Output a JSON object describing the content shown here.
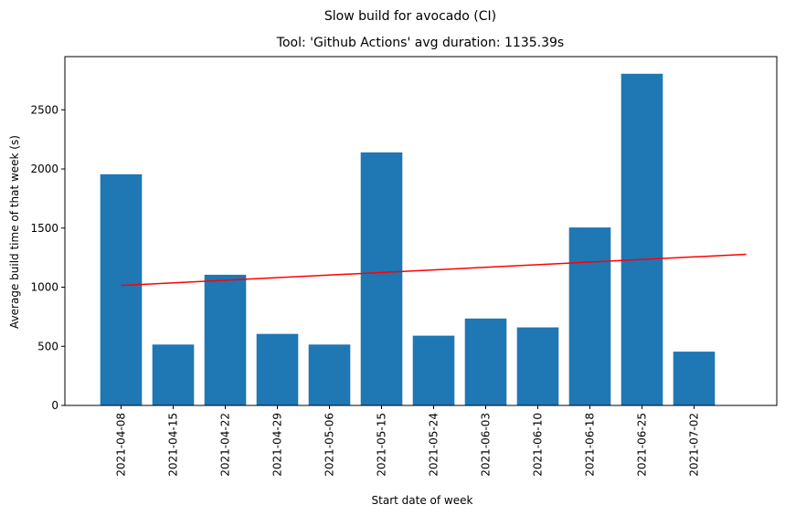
{
  "chart_data": {
    "type": "bar",
    "suptitle": "Slow build for avocado (CI)",
    "title": "Tool: 'Github Actions' avg duration: 1135.39s",
    "xlabel": "Start date of week",
    "ylabel": "Average build time of that week (s)",
    "categories": [
      "2021-04-08",
      "2021-04-15",
      "2021-04-22",
      "2021-04-29",
      "2021-05-06",
      "2021-05-15",
      "2021-05-24",
      "2021-06-03",
      "2021-06-10",
      "2021-06-18",
      "2021-06-25",
      "2021-07-02"
    ],
    "values": [
      1955,
      515,
      1105,
      605,
      515,
      2140,
      590,
      735,
      660,
      1505,
      2805,
      455
    ],
    "ylim": [
      0,
      2950
    ],
    "yticks": [
      0,
      500,
      1000,
      1500,
      2000,
      2500
    ],
    "bar_color": "#1f77b4",
    "trend_line": {
      "color": "#ff0000",
      "x_start_index": 0,
      "x_end_index": 12,
      "y_start": 1015,
      "y_end": 1278
    },
    "grid": false
  }
}
